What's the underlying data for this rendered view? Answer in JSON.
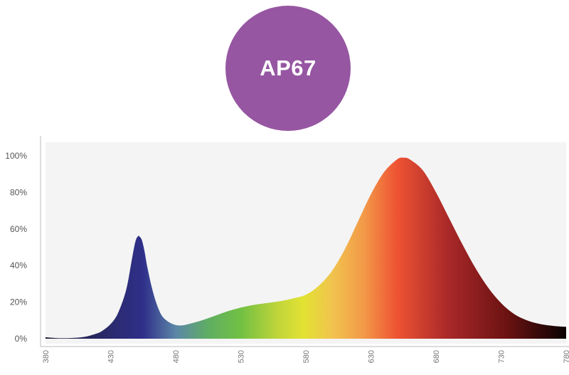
{
  "badge": {
    "label": "AP67",
    "color": "#9656a2"
  },
  "chart_data": {
    "type": "area",
    "title": "",
    "xlabel": "",
    "ylabel": "",
    "xlim": [
      380,
      780
    ],
    "ylim": [
      0,
      100
    ],
    "x_ticks": [
      380,
      430,
      480,
      530,
      580,
      630,
      680,
      730,
      780
    ],
    "y_ticks": [
      0,
      20,
      40,
      60,
      80,
      100
    ],
    "y_tick_labels": [
      "0%",
      "20%",
      "40%",
      "60%",
      "80%",
      "100%"
    ],
    "grid": false,
    "plot_background": "#f4f4f4",
    "x": [
      380,
      390,
      400,
      410,
      420,
      425,
      430,
      435,
      440,
      443,
      446,
      449,
      451,
      452,
      454,
      456,
      458,
      461,
      464,
      467,
      470,
      475,
      480,
      485,
      490,
      500,
      510,
      520,
      530,
      540,
      550,
      560,
      570,
      580,
      590,
      600,
      610,
      620,
      630,
      640,
      650,
      655,
      660,
      670,
      680,
      690,
      700,
      710,
      720,
      730,
      740,
      750,
      760,
      770,
      780
    ],
    "y": [
      0.8,
      0.3,
      0.4,
      1,
      3,
      5,
      8,
      13,
      22,
      30,
      42,
      53,
      56,
      56,
      54,
      48,
      40,
      30,
      22,
      16,
      12,
      9,
      7.5,
      7.3,
      8,
      10,
      12.5,
      15,
      17,
      18.5,
      19.5,
      20.5,
      22,
      24,
      29,
      37,
      49,
      64,
      79,
      91,
      98,
      99,
      98,
      92,
      80,
      66,
      52,
      39,
      28,
      19.5,
      13.5,
      10,
      8,
      7,
      6.5
    ],
    "gradient_stops": [
      {
        "wavelength": 380,
        "color": "#1d1d33"
      },
      {
        "wavelength": 430,
        "color": "#2a2a6e"
      },
      {
        "wavelength": 455,
        "color": "#2f2f8a"
      },
      {
        "wavelength": 480,
        "color": "#5c86a8"
      },
      {
        "wavelength": 505,
        "color": "#5fae63"
      },
      {
        "wavelength": 530,
        "color": "#72c043"
      },
      {
        "wavelength": 560,
        "color": "#c4d63a"
      },
      {
        "wavelength": 578,
        "color": "#e2e232"
      },
      {
        "wavelength": 600,
        "color": "#f1c44e"
      },
      {
        "wavelength": 625,
        "color": "#f29848"
      },
      {
        "wavelength": 650,
        "color": "#ee5333"
      },
      {
        "wavelength": 690,
        "color": "#a82828"
      },
      {
        "wavelength": 735,
        "color": "#6b1212"
      },
      {
        "wavelength": 780,
        "color": "#0a0202"
      }
    ]
  }
}
